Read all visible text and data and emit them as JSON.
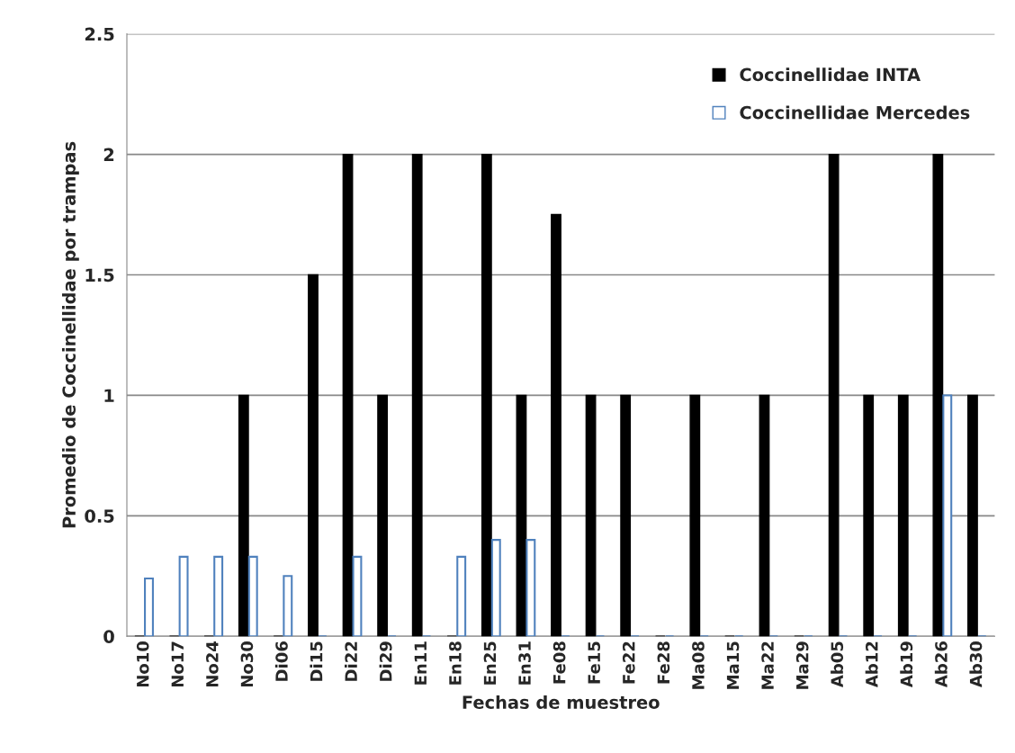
{
  "chart_data": {
    "type": "bar",
    "xlabel": "Fechas de muestreo",
    "ylabel": "Promedio de Coccinellidae por trampas",
    "categories": [
      "No10",
      "No17",
      "No24",
      "No30",
      "Di06",
      "Di15",
      "Di22",
      "Di29",
      "En11",
      "En18",
      "En25",
      "En31",
      "Fe08",
      "Fe15",
      "Fe22",
      "Fe28",
      "Ma08",
      "Ma15",
      "Ma22",
      "Ma29",
      "Ab05",
      "Ab12",
      "Ab19",
      "Ab26",
      "Ab30"
    ],
    "series": [
      {
        "name": "Coccinellidae INTA",
        "color": "#000000",
        "values": [
          0,
          0,
          0,
          1,
          0,
          1.5,
          2,
          1,
          2,
          0,
          2,
          1,
          1.75,
          1,
          1,
          0,
          1,
          0,
          1,
          0,
          2,
          1,
          1,
          2,
          1
        ]
      },
      {
        "name": "Coccinellidae Mercedes",
        "color": "#4f81bd",
        "values": [
          0.24,
          0.33,
          0.33,
          0.33,
          0.25,
          0,
          0.33,
          0,
          0,
          0.33,
          0.4,
          0.4,
          0,
          0,
          0,
          0,
          0,
          0,
          0,
          0,
          0,
          0,
          0,
          1,
          0
        ]
      }
    ],
    "ylim": [
      0,
      2.5
    ],
    "yticks": [
      {
        "value": 0,
        "label": "0"
      },
      0.5,
      1,
      1.5,
      2,
      2.5
    ],
    "grid": "y",
    "legend": "top right"
  }
}
